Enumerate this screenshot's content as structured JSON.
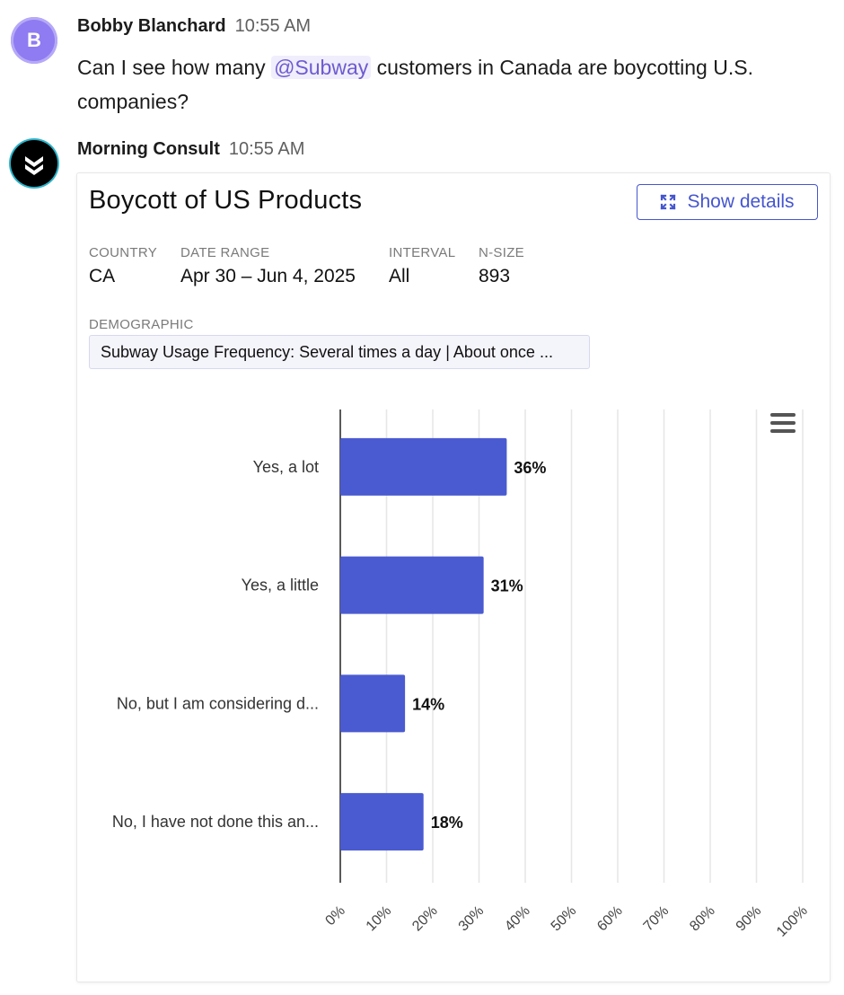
{
  "messages": [
    {
      "avatar_letter": "B",
      "sender": "Bobby Blanchard",
      "time": "10:55 AM",
      "text_before": "Can I see how many ",
      "mention": "@Subway",
      "text_after": " customers in Canada are boycotting U.S. companies?"
    },
    {
      "avatar_icon": "morning-consult-logo-icon",
      "sender": "Morning Consult",
      "time": "10:55 AM"
    }
  ],
  "card": {
    "title": "Boycott of US Products",
    "details_button": "Show details",
    "details_icon": "expand-icon",
    "meta": [
      {
        "label": "COUNTRY",
        "value": "CA"
      },
      {
        "label": "DATE RANGE",
        "value": "Apr 30 – Jun 4, 2025"
      },
      {
        "label": "INTERVAL",
        "value": "All"
      },
      {
        "label": "N-SIZE",
        "value": "893"
      }
    ],
    "demographic_label": "DEMOGRAPHIC",
    "demographic_value": "Subway Usage Frequency: Several times a day | About once ...",
    "menu_icon": "hamburger-menu-icon"
  },
  "colors": {
    "bar": "#4a5bd1",
    "accent": "#4556cf",
    "mention_text": "#6d5bd0"
  },
  "chart_data": {
    "type": "bar",
    "orientation": "horizontal",
    "categories": [
      "Yes, a lot",
      "Yes, a little",
      "No, but I am considering d...",
      "No, I have not done this an..."
    ],
    "values": [
      36,
      31,
      14,
      18
    ],
    "value_labels": [
      "36%",
      "31%",
      "14%",
      "18%"
    ],
    "xlim": [
      0,
      100
    ],
    "ticks": [
      "0%",
      "10%",
      "20%",
      "30%",
      "40%",
      "50%",
      "60%",
      "70%",
      "80%",
      "90%",
      "100%"
    ],
    "grid": true,
    "legend": "none"
  }
}
